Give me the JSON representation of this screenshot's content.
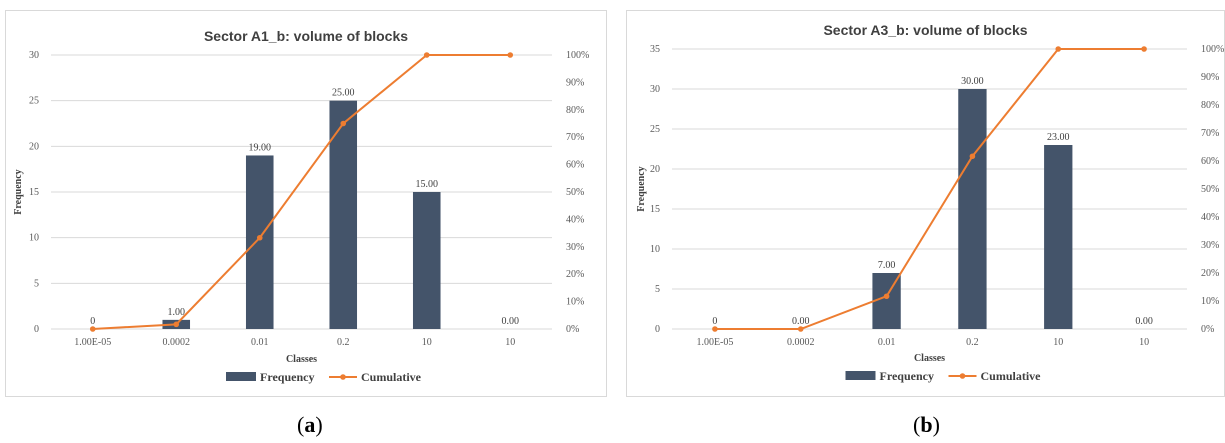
{
  "colors": {
    "bar": "#44546a",
    "line": "#ed7d31"
  },
  "legend": {
    "frequency_label": "Frequency",
    "cumulative_label": "Cumulative"
  },
  "captions": [
    {
      "open": "(",
      "letter": "a",
      "close": ")"
    },
    {
      "open": "(",
      "letter": "b",
      "close": ")"
    }
  ],
  "chart_data": [
    {
      "type": "bar",
      "title": "Sector A1_b: volume of blocks",
      "xlabel": "Classes",
      "ylabel": "Frequency",
      "categories": [
        "1.00E-05",
        "0.0002",
        "0.01",
        "0.2",
        "10",
        "10"
      ],
      "ylim": [
        0,
        30
      ],
      "yticks": [
        0,
        5,
        10,
        15,
        20,
        25,
        30
      ],
      "y2lim": [
        0,
        100
      ],
      "y2ticks": [
        "0%",
        "10%",
        "20%",
        "30%",
        "40%",
        "50%",
        "60%",
        "70%",
        "80%",
        "90%",
        "100%"
      ],
      "grid": true,
      "legend_position": "bottom",
      "series": [
        {
          "name": "Frequency",
          "type": "bar",
          "values": [
            0,
            1,
            19,
            25,
            15,
            0
          ],
          "labels": [
            "0",
            "1.00",
            "19.00",
            "25.00",
            "15.00",
            "0.00"
          ]
        },
        {
          "name": "Cumulative",
          "type": "line",
          "axis": "secondary",
          "values": [
            0,
            1.7,
            33.3,
            75,
            100,
            100
          ]
        }
      ]
    },
    {
      "type": "bar",
      "title": "Sector A3_b: volume of blocks",
      "xlabel": "Classes",
      "ylabel": "Frequency",
      "categories": [
        "1.00E-05",
        "0.0002",
        "0.01",
        "0.2",
        "10",
        "10"
      ],
      "ylim": [
        0,
        35
      ],
      "yticks": [
        0,
        5,
        10,
        15,
        20,
        25,
        30,
        35
      ],
      "y2lim": [
        0,
        100
      ],
      "y2ticks": [
        "0%",
        "10%",
        "20%",
        "30%",
        "40%",
        "50%",
        "60%",
        "70%",
        "80%",
        "90%",
        "100%"
      ],
      "grid": true,
      "legend_position": "bottom",
      "series": [
        {
          "name": "Frequency",
          "type": "bar",
          "values": [
            0,
            0,
            7,
            30,
            23,
            0
          ],
          "labels": [
            "0",
            "0.00",
            "7.00",
            "30.00",
            "23.00",
            "0.00"
          ]
        },
        {
          "name": "Cumulative",
          "type": "line",
          "axis": "secondary",
          "values": [
            0,
            0,
            11.7,
            61.7,
            100,
            100
          ]
        }
      ]
    }
  ]
}
